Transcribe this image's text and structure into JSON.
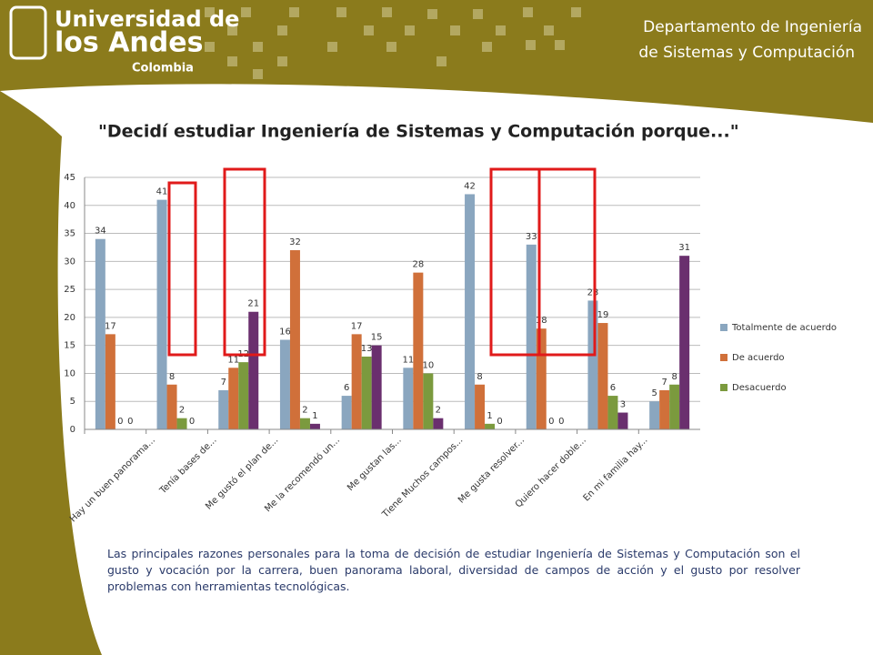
{
  "header": {
    "logo": [
      "Universidad de",
      "los Andes",
      "Colombia"
    ],
    "department": [
      "Departamento de Ingeniería",
      "de Sistemas y Computación"
    ]
  },
  "chart_data": {
    "type": "bar",
    "title": "\"Decidí estudiar Ingeniería de Sistemas y Computación porque...\"",
    "categories": [
      null,
      "Hay un buen panorama...",
      "Tenía bases de...",
      "Me gustó el plan de...",
      "Me la recomendó un...",
      "Me gustan las...",
      "Tiene Muchos campos...",
      "Me gusta resolver...",
      "Quiero hacer doble...",
      "En mi familia hay..."
    ],
    "series": [
      {
        "name": "Totalmente de acuerdo",
        "color": "#8aa6bf",
        "values": [
          34,
          41,
          7,
          16,
          6,
          11,
          42,
          33,
          23,
          5
        ]
      },
      {
        "name": "De acuerdo",
        "color": "#d0703a",
        "values": [
          17,
          8,
          11,
          32,
          17,
          28,
          8,
          18,
          19,
          7
        ]
      },
      {
        "name": "Desacuerdo",
        "color": "#7b9a3e",
        "values": [
          0,
          2,
          12,
          2,
          13,
          10,
          1,
          0,
          6,
          8
        ]
      },
      {
        "color": "#6a2f6e",
        "values": [
          0,
          0,
          21,
          1,
          15,
          2,
          0,
          0,
          3,
          31
        ]
      }
    ],
    "ylim": [
      0,
      45
    ],
    "yticks": [
      0,
      5,
      10,
      15,
      20,
      25,
      30,
      35,
      40,
      45
    ],
    "grid": true,
    "legend": "right"
  },
  "caption": "Las principales razones personales para la toma de decisión de estudiar Ingeniería de Sistemas y Computación son el gusto y vocación por la carrera, buen panorama laboral, diversidad de campos de acción y el gusto por resolver problemas con herramientas tecnológicas."
}
